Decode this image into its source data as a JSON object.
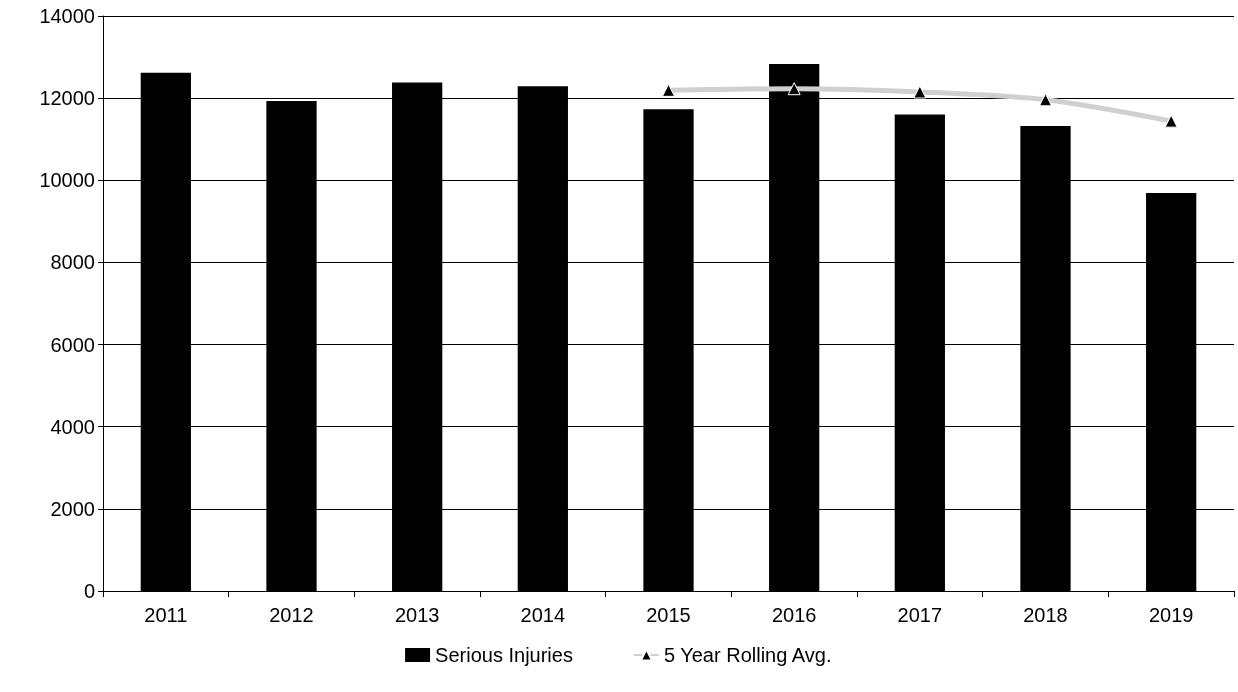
{
  "chart_data": {
    "type": "bar",
    "categories": [
      "2011",
      "2012",
      "2013",
      "2014",
      "2015",
      "2016",
      "2017",
      "2018",
      "2019"
    ],
    "series": [
      {
        "name": "Serious Injuries",
        "color": "#000000",
        "values": [
          12620,
          11930,
          12380,
          12290,
          11730,
          12830,
          11600,
          11320,
          9690
        ]
      },
      {
        "name": "5 Year Rolling Avg.",
        "type": "line",
        "color": "#d0d0d0",
        "marker": "triangle",
        "values": [
          null,
          null,
          null,
          null,
          12190,
          12230,
          12150,
          11960,
          11440
        ]
      }
    ],
    "ylim": [
      0,
      14000
    ],
    "yticks": [
      0,
      2000,
      4000,
      6000,
      8000,
      10000,
      12000,
      14000
    ],
    "grid": "y",
    "legend": "bottom"
  }
}
